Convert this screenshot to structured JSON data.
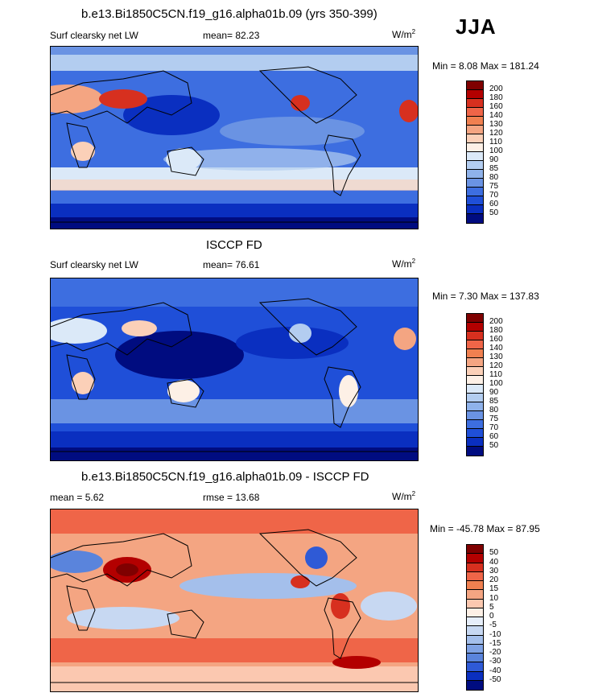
{
  "season": "JJA",
  "panels": [
    {
      "title": "b.e13.Bi1850C5CN.f19_g16.alpha01b.09 (yrs 350-399)",
      "variable": "Surf clearsky net LW",
      "mean_label": "mean=",
      "mean_value": "82.23",
      "units": "W/m",
      "units_exp": "2",
      "minmax": "Min =   8.08 Max = 181.24",
      "colorbar_labels": [
        "200",
        "180",
        "160",
        "140",
        "130",
        "120",
        "110",
        "100",
        "90",
        "85",
        "80",
        "75",
        "70",
        "60",
        "50"
      ],
      "colorbar_colors": [
        "#7f0000",
        "#b30000",
        "#d7301f",
        "#ef6548",
        "#f08050",
        "#f4a582",
        "#fbd0b8",
        "#fdf0e6",
        "#dbe9f8",
        "#b3cdf0",
        "#8fb2ea",
        "#6a93e3",
        "#3d6ee0",
        "#1f4fd8",
        "#0a2fc0",
        "#000c80"
      ]
    },
    {
      "title": "ISCCP FD",
      "variable": "Surf clearsky net LW",
      "mean_label": "mean=",
      "mean_value": "76.61",
      "units": "W/m",
      "units_exp": "2",
      "minmax": "Min =   7.30 Max = 137.83",
      "colorbar_labels": [
        "200",
        "180",
        "160",
        "140",
        "130",
        "120",
        "110",
        "100",
        "90",
        "85",
        "80",
        "75",
        "70",
        "60",
        "50"
      ],
      "colorbar_colors": [
        "#7f0000",
        "#b30000",
        "#d7301f",
        "#ef6548",
        "#f08050",
        "#f4a582",
        "#fbd0b8",
        "#fdf0e6",
        "#dbe9f8",
        "#b3cdf0",
        "#8fb2ea",
        "#6a93e3",
        "#3d6ee0",
        "#1f4fd8",
        "#0a2fc0",
        "#000c80"
      ]
    },
    {
      "title": "b.e13.Bi1850C5CN.f19_g16.alpha01b.09 - ISCCP FD",
      "mean_label": "mean =",
      "mean_value": "5.62",
      "rmse_label": "rmse =",
      "rmse_value": "13.68",
      "units": "W/m",
      "units_exp": "2",
      "minmax": "Min = -45.78 Max =  87.95",
      "colorbar_labels": [
        "50",
        "40",
        "30",
        "20",
        "15",
        "10",
        "5",
        "0",
        "-5",
        "-10",
        "-15",
        "-20",
        "-30",
        "-40",
        "-50"
      ],
      "colorbar_colors": [
        "#7f0000",
        "#b30000",
        "#d7301f",
        "#ef6548",
        "#f08050",
        "#f4a582",
        "#fbc8b0",
        "#fdf0e6",
        "#e6eefa",
        "#c7d8f2",
        "#a4bfeb",
        "#7fa2e4",
        "#5a84dc",
        "#2f5ad6",
        "#0a2fc0",
        "#000c80"
      ]
    }
  ]
}
